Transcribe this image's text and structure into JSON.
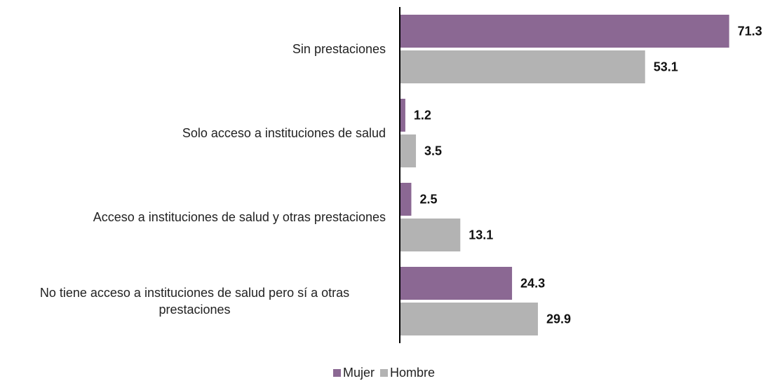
{
  "chart_data": {
    "type": "bar",
    "orientation": "horizontal",
    "categories": [
      "Sin prestaciones",
      "Solo acceso a instituciones de salud",
      "Acceso a instituciones de salud y otras prestaciones",
      "No tiene acceso a instituciones de salud pero sí a otras prestaciones"
    ],
    "series": [
      {
        "name": "Mujer",
        "color": "#8b6893",
        "values": [
          71.3,
          1.2,
          2.5,
          24.3
        ]
      },
      {
        "name": "Hombre",
        "color": "#b3b3b3",
        "values": [
          53.1,
          3.5,
          13.1,
          29.9
        ]
      }
    ],
    "xlim": [
      0,
      75
    ],
    "legend": "bottom"
  }
}
